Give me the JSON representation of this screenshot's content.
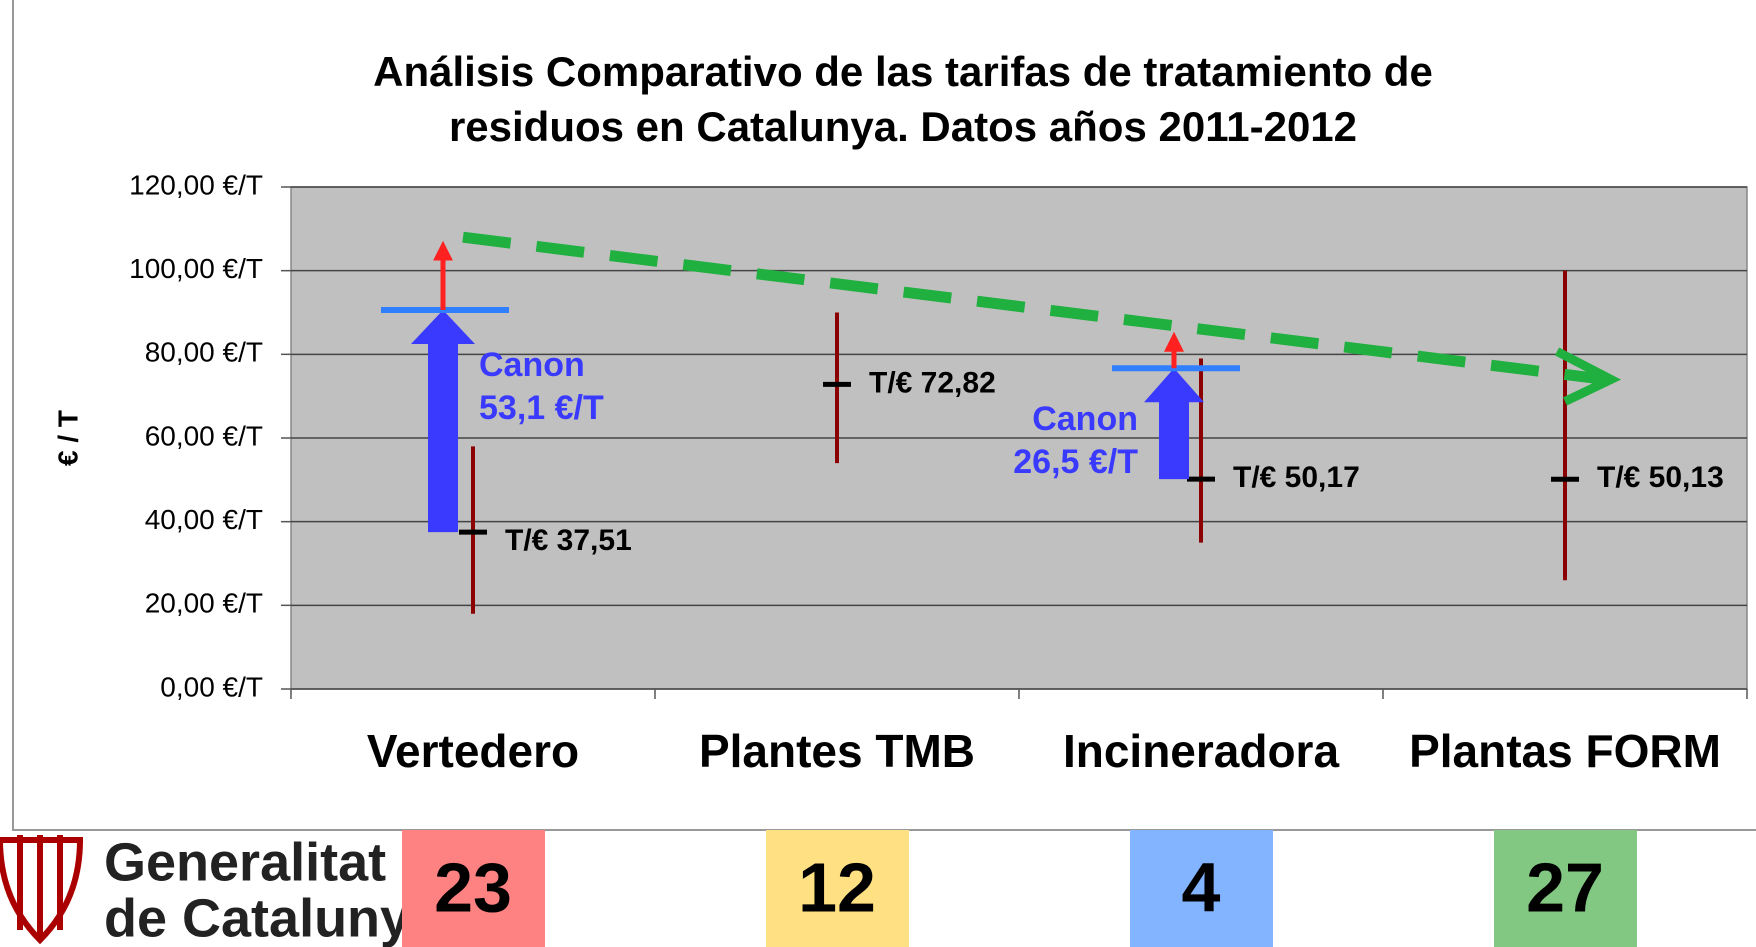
{
  "chart_data": {
    "type": "range",
    "title": [
      "Análisis Comparativo de las tarifas de tratamiento de",
      "residuos en  Catalunya. Datos años 2011-2012"
    ],
    "y_label": "€ / T",
    "categories": [
      "Vertedero",
      "Plantes TMB",
      "Incineradora",
      "Plantas FORM"
    ],
    "values": [
      37.51,
      72.82,
      50.17,
      50.13
    ],
    "value_labels": [
      "T/€ 37,51",
      "T/€ 72,82",
      "T/€ 50,17",
      "T/€ 50,13"
    ],
    "low": [
      18,
      54,
      35,
      26
    ],
    "high": [
      58,
      90,
      79,
      100
    ],
    "color": "#8b0000",
    "canon": [
      {
        "category": 0,
        "value": 53.1,
        "label": "Canon",
        "value_label": "53,1 €/T"
      },
      {
        "category": 2,
        "value": 26.5,
        "label": "Canon",
        "value_label": "26,5 €/T"
      }
    ],
    "trend": [
      108,
      74
    ],
    "ylim": [
      0,
      120
    ],
    "yticks": [
      {
        "value": 0,
        "label": "0,00 €/T"
      },
      {
        "value": 20,
        "label": "20,00 €/T"
      },
      {
        "value": 40,
        "label": "40,00 €/T"
      },
      {
        "value": 60,
        "label": "60,00 €/T"
      },
      {
        "value": 80,
        "label": "80,00 €/T"
      },
      {
        "value": 100,
        "label": "100,00 €/T"
      },
      {
        "value": 120,
        "label": "120,00 €/T"
      }
    ],
    "grid": true,
    "counts": [
      {
        "value": 23,
        "color": "#ff8282"
      },
      {
        "value": 12,
        "color": "#ffe083"
      },
      {
        "value": 4,
        "color": "#82b4ff"
      },
      {
        "value": 27,
        "color": "#82c882"
      }
    ],
    "logo": [
      "Generalitat",
      "de Catalunya"
    ]
  }
}
